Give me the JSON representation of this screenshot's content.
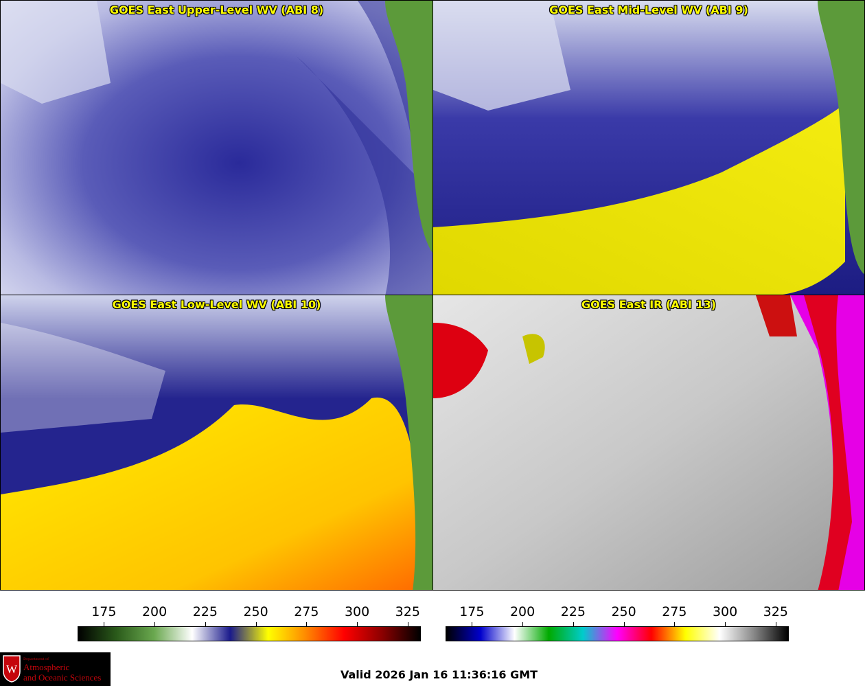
{
  "panels": {
    "upper": {
      "title": "GOES East Upper-Level WV (ABI 8)"
    },
    "mid": {
      "title": "GOES East Mid-Level WV (ABI 9)"
    },
    "low": {
      "title": "GOES East Low-Level WV (ABI 10)"
    },
    "ir": {
      "title": "GOES East IR (ABI 13)"
    }
  },
  "colorbars": {
    "wv": {
      "ticks": [
        "175",
        "200",
        "225",
        "250",
        "275",
        "300",
        "325"
      ],
      "colors": [
        "#000000",
        "#2a5a1a",
        "#6aa84f",
        "#ffffff",
        "#1a1a8c",
        "#ffff00",
        "#ff8800",
        "#ff0000",
        "#8b0000",
        "#000000"
      ]
    },
    "ir": {
      "ticks": [
        "175",
        "200",
        "225",
        "250",
        "275",
        "300",
        "325"
      ],
      "colors": [
        "#000000",
        "#0000cc",
        "#ffffff",
        "#00aa00",
        "#00cccc",
        "#ff00ff",
        "#ff0000",
        "#ffff00",
        "#ffffff",
        "#888888",
        "#000000"
      ]
    }
  },
  "logo": {
    "department": "Department of",
    "line1": "Atmospheric",
    "line2": "and Oceanic Sciences",
    "letter": "W"
  },
  "valid_text": "Valid 2026 Jan 16 11:36:16 GMT",
  "colors": {
    "title": "#ffff00",
    "state_borders": "#ff2020",
    "coastline": "#7a4a10",
    "canada_border": "#1a8a3a"
  }
}
